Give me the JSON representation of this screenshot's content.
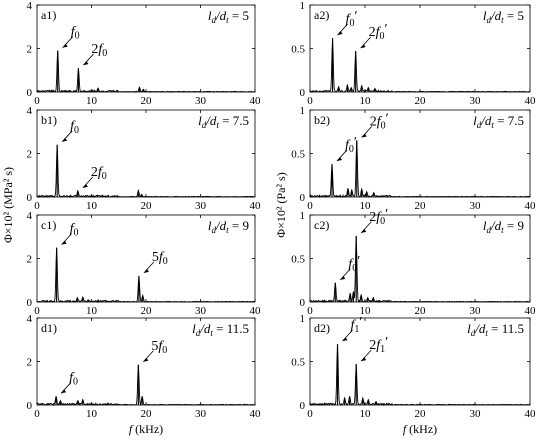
{
  "chart_data": {
    "type": "line",
    "xlabel": "f (kHz)",
    "xlim": [
      0,
      40
    ],
    "xticks": [
      0,
      10,
      20,
      30,
      40
    ],
    "ylabels": [
      "Φ×10² (MPa² s)",
      "Φ×10² (Pa² s)"
    ],
    "panels": [
      {
        "id": "a1",
        "label": "a1)",
        "ratio_value": "5",
        "col": 0,
        "row": 0,
        "ylim": [
          0,
          4
        ],
        "yticks": [
          0,
          2,
          4
        ],
        "peaks": [
          [
            3.8,
            1.9
          ],
          [
            7.6,
            1.1
          ],
          [
            11.2,
            0.18
          ],
          [
            18.8,
            0.22
          ],
          [
            19.5,
            0.12
          ]
        ],
        "annotations": [
          {
            "text": "f0",
            "x": 3.8,
            "y": 1.9
          },
          {
            "text": "2f0",
            "x": 7.6,
            "y": 1.1
          }
        ]
      },
      {
        "id": "a2",
        "label": "a2)",
        "ratio_value": "5",
        "col": 1,
        "row": 0,
        "ylim": [
          0,
          1
        ],
        "yticks": [
          0,
          0.5,
          1
        ],
        "peaks": [
          [
            4.1,
            0.62
          ],
          [
            8.3,
            0.47
          ],
          [
            5.2,
            0.06
          ],
          [
            6.8,
            0.08
          ],
          [
            7.5,
            0.05
          ],
          [
            9.4,
            0.07
          ],
          [
            10.6,
            0.05
          ],
          [
            11.8,
            0.04
          ]
        ],
        "annotations": [
          {
            "text": "f0′",
            "x": 4.1,
            "y": 0.62
          },
          {
            "text": "2f0′",
            "x": 8.3,
            "y": 0.47
          }
        ]
      },
      {
        "id": "b1",
        "label": "b1)",
        "ratio_value": "7.5",
        "col": 0,
        "row": 1,
        "ylim": [
          0,
          4
        ],
        "yticks": [
          0,
          2,
          4
        ],
        "peaks": [
          [
            3.7,
            2.4
          ],
          [
            7.5,
            0.28
          ],
          [
            11.1,
            0.08
          ],
          [
            18.6,
            0.3
          ],
          [
            19.2,
            0.12
          ]
        ],
        "annotations": [
          {
            "text": "f0",
            "x": 3.7,
            "y": 2.4
          },
          {
            "text": "2f0",
            "x": 7.5,
            "y": 0.28
          }
        ]
      },
      {
        "id": "b2",
        "label": "b2)",
        "ratio_value": "7.5",
        "col": 1,
        "row": 1,
        "ylim": [
          0,
          1
        ],
        "yticks": [
          0,
          0.5,
          1
        ],
        "peaks": [
          [
            4.0,
            0.38
          ],
          [
            8.5,
            0.65
          ],
          [
            6.9,
            0.1
          ],
          [
            7.6,
            0.08
          ],
          [
            9.4,
            0.09
          ],
          [
            10.3,
            0.06
          ],
          [
            11.6,
            0.05
          ]
        ],
        "annotations": [
          {
            "text": "f0′",
            "x": 4.0,
            "y": 0.38
          },
          {
            "text": "2f0′",
            "x": 8.5,
            "y": 0.65
          }
        ]
      },
      {
        "id": "c1",
        "label": "c1)",
        "ratio_value": "9",
        "col": 0,
        "row": 2,
        "ylim": [
          0,
          4
        ],
        "yticks": [
          0,
          2,
          4
        ],
        "peaks": [
          [
            3.6,
            2.5
          ],
          [
            7.4,
            0.2
          ],
          [
            8.4,
            0.22
          ],
          [
            9.4,
            0.1
          ],
          [
            18.7,
            1.2
          ],
          [
            19.4,
            0.3
          ]
        ],
        "annotations": [
          {
            "text": "f0",
            "x": 3.6,
            "y": 2.5
          },
          {
            "text": "5f0",
            "x": 18.7,
            "y": 1.2
          }
        ]
      },
      {
        "id": "c2",
        "label": "c2)",
        "ratio_value": "9",
        "col": 1,
        "row": 2,
        "ylim": [
          0,
          1
        ],
        "yticks": [
          0,
          0.5,
          1
        ],
        "peaks": [
          [
            4.6,
            0.22
          ],
          [
            8.4,
            0.76
          ],
          [
            7.3,
            0.1
          ],
          [
            7.9,
            0.12
          ],
          [
            9.3,
            0.08
          ],
          [
            10.5,
            0.05
          ],
          [
            11.5,
            0.05
          ]
        ],
        "annotations": [
          {
            "text": "f0′",
            "x": 4.6,
            "y": 0.22
          },
          {
            "text": "2f0′",
            "x": 8.4,
            "y": 0.76
          }
        ]
      },
      {
        "id": "d1",
        "label": "d1)",
        "ratio_value": "11.5",
        "col": 0,
        "row": 3,
        "ylim": [
          0,
          4
        ],
        "yticks": [
          0,
          2,
          4
        ],
        "peaks": [
          [
            3.5,
            0.4
          ],
          [
            4.3,
            0.2
          ],
          [
            7.5,
            0.2
          ],
          [
            8.4,
            0.25
          ],
          [
            18.6,
            1.85
          ],
          [
            19.3,
            0.4
          ]
        ],
        "annotations": [
          {
            "text": "f0",
            "x": 3.5,
            "y": 0.4
          },
          {
            "text": "5f0",
            "x": 18.6,
            "y": 1.85
          }
        ]
      },
      {
        "id": "d2",
        "label": "d2)",
        "ratio_value": "11.5",
        "col": 1,
        "row": 3,
        "ylim": [
          0,
          1
        ],
        "yticks": [
          0,
          0.5,
          1
        ],
        "peaks": [
          [
            5.0,
            0.7
          ],
          [
            8.4,
            0.47
          ],
          [
            6.3,
            0.08
          ],
          [
            7.2,
            0.1
          ],
          [
            9.6,
            0.08
          ],
          [
            10.6,
            0.06
          ],
          [
            12.0,
            0.04
          ]
        ],
        "annotations": [
          {
            "text": "f1′",
            "x": 5.0,
            "y": 0.7
          },
          {
            "text": "2f1′",
            "x": 8.4,
            "y": 0.47
          }
        ]
      }
    ]
  }
}
